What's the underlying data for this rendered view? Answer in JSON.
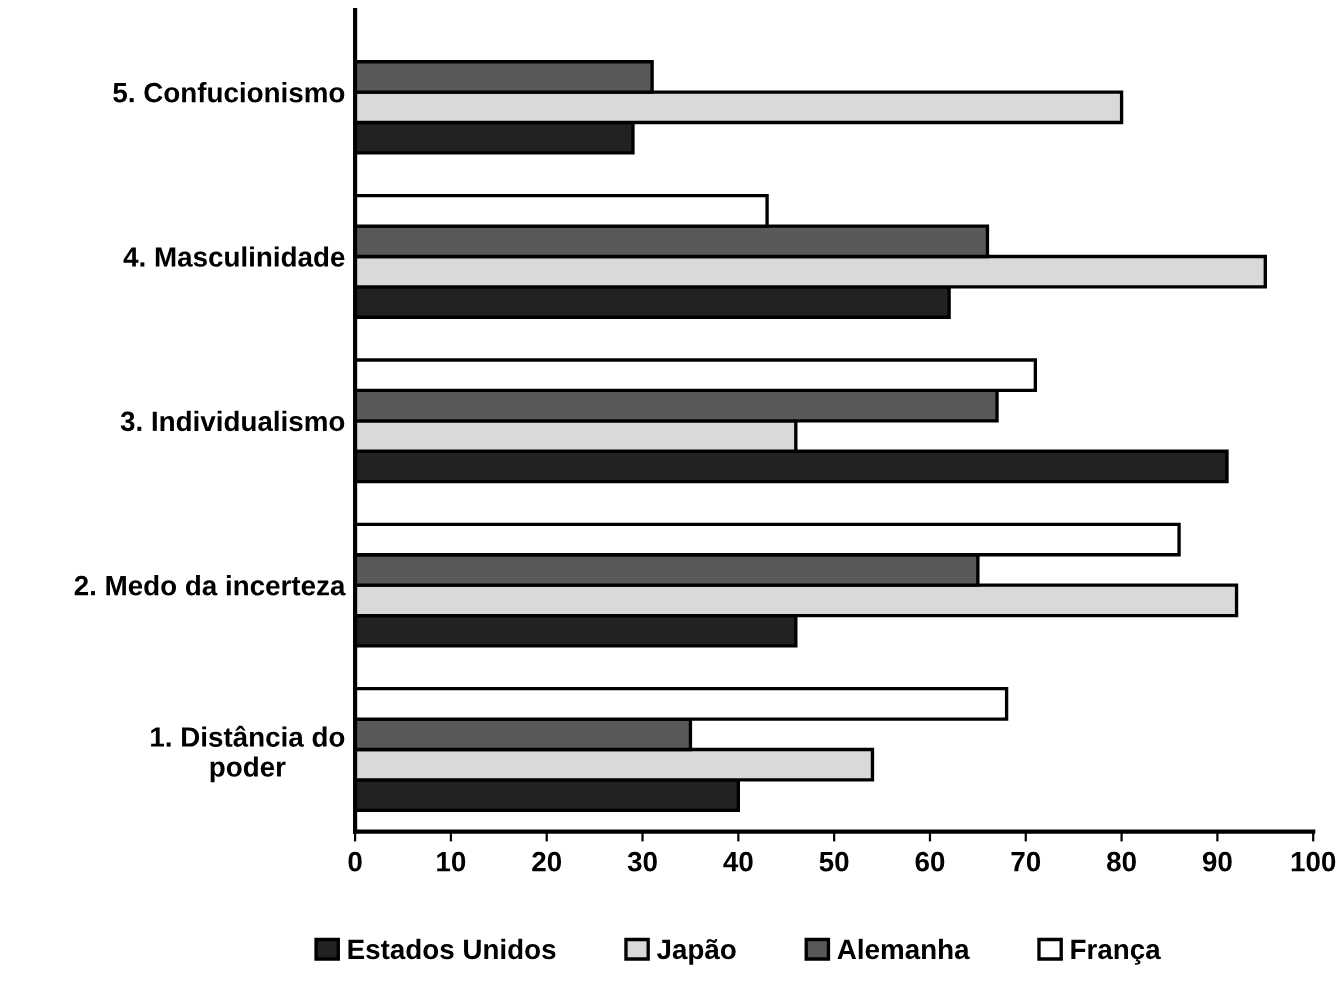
{
  "chart_data": {
    "type": "bar",
    "orientation": "horizontal",
    "categories": [
      "5. Confucionismo",
      "4. Masculinidade",
      "3. Individualismo",
      "2. Medo da incerteza",
      "1. Distância do\npoder"
    ],
    "series": [
      {
        "name": "Estados Unidos",
        "color": "#222222",
        "values": [
          29,
          62,
          91,
          46,
          40
        ]
      },
      {
        "name": "Japão",
        "color": "#d9d9d9",
        "values": [
          80,
          95,
          46,
          92,
          54
        ]
      },
      {
        "name": "Alemanha",
        "color": "#595959",
        "values": [
          31,
          66,
          67,
          65,
          35
        ]
      },
      {
        "name": "França",
        "color": "#ffffff",
        "values": [
          null,
          43,
          71,
          86,
          68
        ]
      }
    ],
    "xlim": [
      0,
      100
    ],
    "xticks": [
      0,
      10,
      20,
      30,
      40,
      50,
      60,
      70,
      80,
      90,
      100
    ],
    "grid": false,
    "legend": "bottom"
  }
}
